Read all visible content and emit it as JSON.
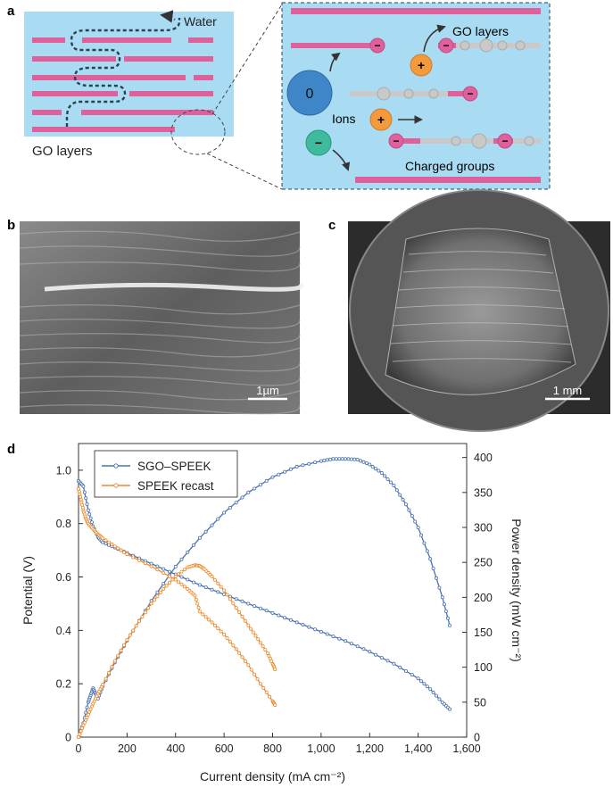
{
  "panel_labels": {
    "a": "a",
    "b": "b",
    "c": "c",
    "d": "d"
  },
  "panel_a": {
    "water_label": "Water",
    "go_layers_label": "GO layers",
    "inset_go_layers_label": "GO layers",
    "ions_label": "Ions",
    "charged_groups_label": "Charged groups",
    "neutral_ion_symbol": "0",
    "positive_symbol": "+",
    "negative_symbol": "−",
    "colors": {
      "background": "#a9dcf3",
      "layer": "#e0609c",
      "positive_ion": "#f39a3c",
      "neutral_ion": "#3f86c8",
      "negative_ion": "#3dbb9c",
      "chain": "#c9c9c9",
      "path": "#2f4050"
    }
  },
  "panel_b": {
    "scale_label": "1µm"
  },
  "panel_c": {
    "scale_label": "1 mm"
  },
  "chart_data": {
    "type": "line",
    "xlabel": "Current density (mA cm⁻²)",
    "ylabel": "Potential (V)",
    "y2label": "Power density (mW cm⁻²)",
    "xlim": [
      0,
      1600
    ],
    "ylim": [
      0,
      1.1
    ],
    "y2lim": [
      0,
      420
    ],
    "x_ticks": [
      0,
      200,
      400,
      600,
      800,
      1000,
      1200,
      1400,
      1600
    ],
    "x_tick_labels": [
      "0",
      "200",
      "400",
      "600",
      "800",
      "1,000",
      "1,200",
      "1,400",
      "1,600"
    ],
    "y_ticks": [
      0,
      0.2,
      0.4,
      0.6,
      0.8,
      1.0
    ],
    "y_tick_labels": [
      "0",
      "0.2",
      "0.4",
      "0.6",
      "0.8",
      "1.0"
    ],
    "y2_ticks": [
      0,
      50,
      100,
      150,
      200,
      250,
      300,
      350,
      400
    ],
    "y2_tick_labels": [
      "0",
      "50",
      "100",
      "150",
      "200",
      "250",
      "300",
      "350",
      "400"
    ],
    "legend_position": "top-left",
    "series": [
      {
        "name": "SGO–SPEEK",
        "color": "#4a72b0",
        "axis": "left",
        "x": [
          0,
          20,
          40,
          60,
          80,
          100,
          150,
          200,
          300,
          400,
          500,
          600,
          700,
          800,
          900,
          1000,
          1100,
          1200,
          1300,
          1400,
          1450,
          1500,
          1530
        ],
        "y": [
          0.96,
          0.94,
          0.85,
          0.79,
          0.75,
          0.73,
          0.71,
          0.69,
          0.65,
          0.61,
          0.57,
          0.535,
          0.5,
          0.465,
          0.43,
          0.395,
          0.36,
          0.32,
          0.275,
          0.22,
          0.18,
          0.13,
          0.105
        ]
      },
      {
        "name": "SGO–SPEEK power",
        "color": "#4a72b0",
        "axis": "right",
        "legend": false,
        "x": [
          0,
          20,
          40,
          50,
          60,
          70,
          80,
          100,
          150,
          200,
          300,
          400,
          500,
          600,
          700,
          800,
          900,
          1000,
          1050,
          1100,
          1150,
          1200,
          1250,
          1300,
          1350,
          1400,
          1450,
          1500,
          1530
        ],
        "y": [
          0,
          20,
          50,
          60,
          70,
          62,
          55,
          73,
          107,
          138,
          195,
          244,
          285,
          321,
          350,
          372,
          387,
          395,
          398,
          398,
          397,
          390,
          378,
          360,
          333,
          300,
          255,
          200,
          160
        ]
      },
      {
        "name": "SPEEK recast",
        "color": "#ed8b2e",
        "axis": "left",
        "x": [
          0,
          10,
          20,
          30,
          40,
          60,
          80,
          100,
          150,
          200,
          300,
          400,
          450,
          480,
          500,
          550,
          600,
          650,
          700,
          750,
          800,
          810
        ],
        "y": [
          0.93,
          0.89,
          0.85,
          0.82,
          0.8,
          0.78,
          0.76,
          0.745,
          0.715,
          0.685,
          0.64,
          0.59,
          0.555,
          0.53,
          0.47,
          0.43,
          0.385,
          0.33,
          0.27,
          0.2,
          0.135,
          0.12
        ]
      },
      {
        "name": "SPEEK recast power",
        "color": "#ed8b2e",
        "axis": "right",
        "legend": false,
        "x": [
          0,
          20,
          40,
          60,
          80,
          100,
          150,
          200,
          250,
          300,
          350,
          400,
          450,
          480,
          500,
          520,
          550,
          600,
          650,
          700,
          740,
          780,
          800,
          810
        ],
        "y": [
          0,
          17,
          32,
          48,
          62,
          75,
          109,
          139,
          166,
          191,
          212,
          230,
          243,
          246,
          245,
          240,
          230,
          210,
          185,
          160,
          140,
          120,
          105,
          97
        ]
      }
    ]
  }
}
